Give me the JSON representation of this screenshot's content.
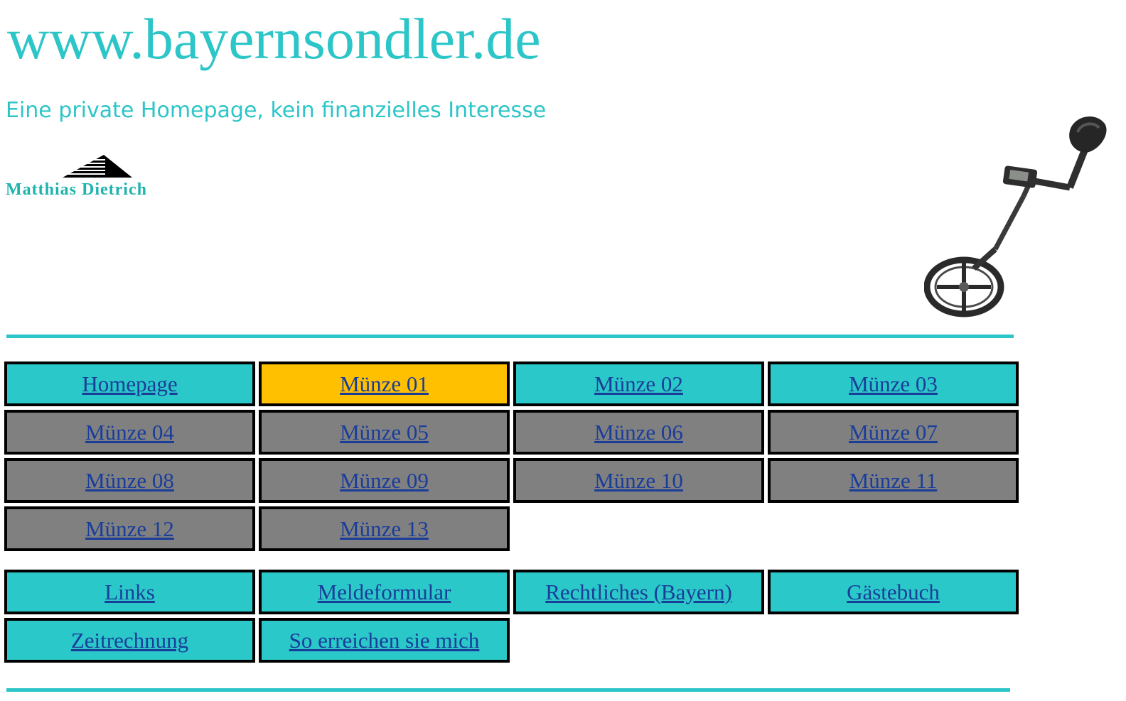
{
  "header": {
    "site_title": "www.bayernsondler.de",
    "subtitle": "Eine private Homepage, kein finanzielles Interesse",
    "logo_name": "Matthias Dietrich"
  },
  "colors": {
    "accent_teal": "#2cc5c8",
    "active_gold": "#ffc000",
    "inactive_grey": "#808080",
    "link_blue": "#1a3d9a"
  },
  "nav": {
    "main": [
      {
        "label": "Homepage",
        "style": "teal"
      },
      {
        "label": "Münze 01",
        "style": "gold"
      },
      {
        "label": "Münze 02",
        "style": "teal"
      },
      {
        "label": "Münze 03",
        "style": "teal"
      },
      {
        "label": "Münze 04",
        "style": "grey"
      },
      {
        "label": "Münze 05",
        "style": "grey"
      },
      {
        "label": "Münze 06",
        "style": "grey"
      },
      {
        "label": "Münze 07",
        "style": "grey"
      },
      {
        "label": "Münze 08",
        "style": "grey"
      },
      {
        "label": "Münze 09",
        "style": "grey"
      },
      {
        "label": "Münze 10",
        "style": "grey"
      },
      {
        "label": "Münze 11",
        "style": "grey"
      },
      {
        "label": "Münze 12",
        "style": "grey"
      },
      {
        "label": "Münze 13",
        "style": "grey"
      }
    ],
    "extra": [
      {
        "label": "Links",
        "style": "teal"
      },
      {
        "label": "Meldeformular",
        "style": "teal"
      },
      {
        "label": "Rechtliches (Bayern)",
        "style": "teal"
      },
      {
        "label": "Gästebuch",
        "style": "teal"
      },
      {
        "label": "Zeitrechnung",
        "style": "teal"
      },
      {
        "label": "So erreichen sie mich",
        "style": "teal"
      }
    ]
  }
}
